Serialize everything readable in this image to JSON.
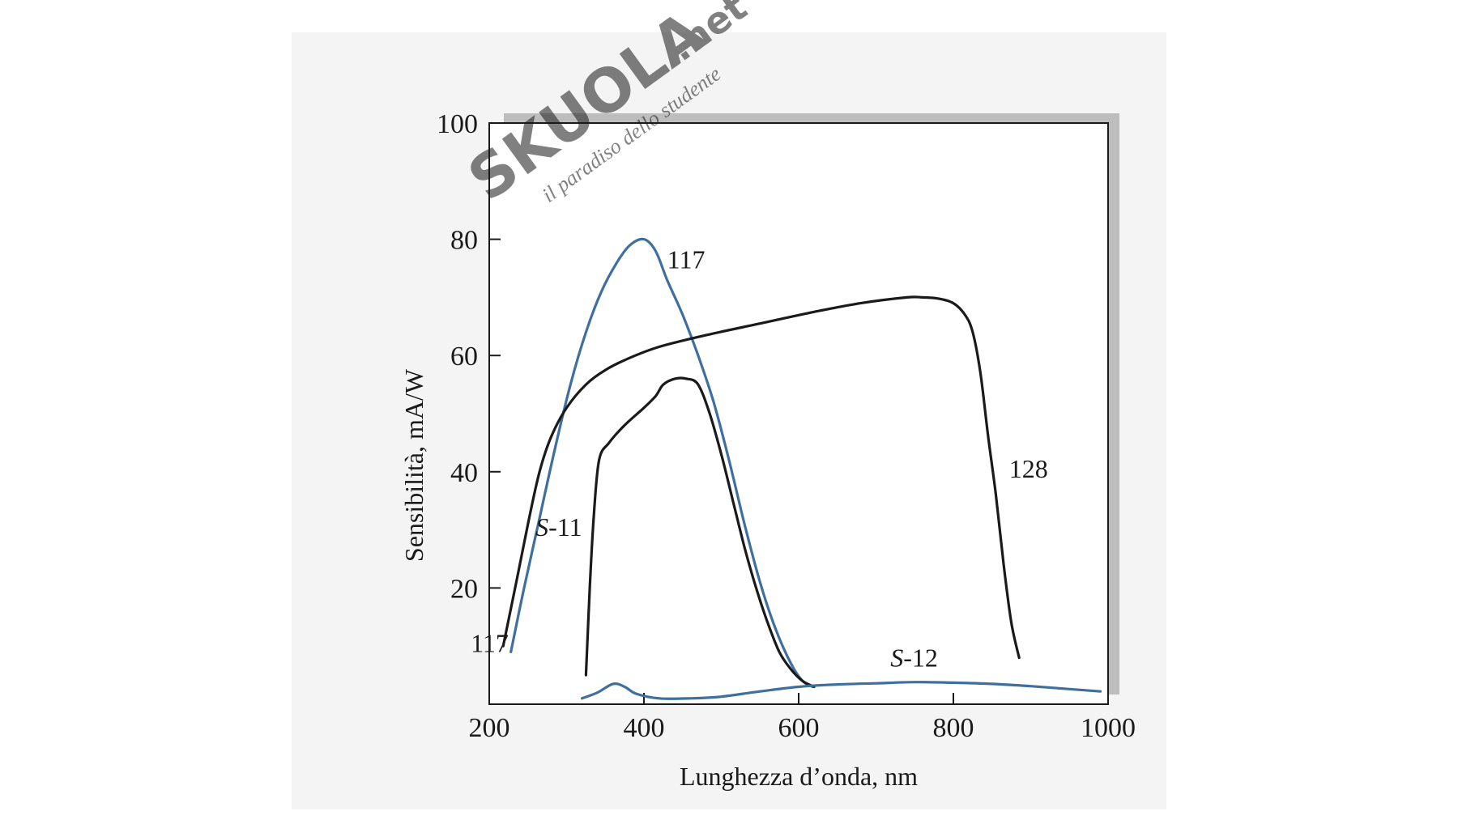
{
  "chart_data": {
    "type": "line",
    "title": "",
    "xlabel": "Lunghezza d’onda, nm",
    "ylabel": "Sensibilità, mA/W",
    "xlim": [
      200,
      1000
    ],
    "ylim": [
      0,
      100
    ],
    "xticks": [
      "200",
      "400",
      "600",
      "800",
      "1000"
    ],
    "yticks": [
      "20",
      "40",
      "60",
      "80",
      "100"
    ],
    "grid": false,
    "legend": "none",
    "series": [
      {
        "name": "117",
        "label_text": "117",
        "label_text_2": "117",
        "color": "#3f6f9e",
        "points": [
          [
            228,
            9
          ],
          [
            245,
            20
          ],
          [
            265,
            32
          ],
          [
            285,
            44
          ],
          [
            305,
            55
          ],
          [
            325,
            64
          ],
          [
            345,
            71
          ],
          [
            365,
            76
          ],
          [
            382,
            79
          ],
          [
            400,
            80
          ],
          [
            415,
            78
          ],
          [
            430,
            73
          ],
          [
            450,
            67
          ],
          [
            470,
            60
          ],
          [
            490,
            52
          ],
          [
            510,
            42
          ],
          [
            530,
            31
          ],
          [
            550,
            21
          ],
          [
            570,
            13
          ],
          [
            590,
            7
          ],
          [
            605,
            4
          ],
          [
            618,
            3
          ]
        ]
      },
      {
        "name": "128",
        "label_text": "128",
        "color": "#1a1a1a",
        "points": [
          [
            218,
            10
          ],
          [
            235,
            21
          ],
          [
            250,
            31
          ],
          [
            265,
            40
          ],
          [
            280,
            46
          ],
          [
            300,
            51
          ],
          [
            325,
            55
          ],
          [
            350,
            57.5
          ],
          [
            380,
            59.5
          ],
          [
            420,
            61.5
          ],
          [
            480,
            63.5
          ],
          [
            550,
            65.5
          ],
          [
            620,
            67.5
          ],
          [
            680,
            69
          ],
          [
            740,
            70
          ],
          [
            760,
            70
          ],
          [
            780,
            69.8
          ],
          [
            800,
            69
          ],
          [
            815,
            67
          ],
          [
            825,
            64
          ],
          [
            835,
            57
          ],
          [
            845,
            46
          ],
          [
            855,
            36
          ],
          [
            865,
            24
          ],
          [
            875,
            14
          ],
          [
            885,
            8
          ]
        ]
      },
      {
        "name": "S-11",
        "label_text": "S-11",
        "color": "#1a1a1a",
        "points": [
          [
            325,
            5
          ],
          [
            330,
            20
          ],
          [
            335,
            32
          ],
          [
            342,
            42
          ],
          [
            355,
            45
          ],
          [
            375,
            48
          ],
          [
            400,
            51
          ],
          [
            415,
            53
          ],
          [
            425,
            55
          ],
          [
            440,
            56
          ],
          [
            455,
            56
          ],
          [
            470,
            55
          ],
          [
            485,
            50
          ],
          [
            500,
            43
          ],
          [
            515,
            35
          ],
          [
            530,
            27
          ],
          [
            545,
            20
          ],
          [
            560,
            14
          ],
          [
            575,
            9
          ],
          [
            590,
            6
          ],
          [
            605,
            4
          ],
          [
            620,
            3
          ]
        ]
      },
      {
        "name": "S-12",
        "label_text": "S-12",
        "color": "#3f6f9e",
        "points": [
          [
            320,
            1
          ],
          [
            340,
            2
          ],
          [
            360,
            3.5
          ],
          [
            375,
            3
          ],
          [
            390,
            1.8
          ],
          [
            420,
            1
          ],
          [
            460,
            1
          ],
          [
            500,
            1.3
          ],
          [
            550,
            2.2
          ],
          [
            600,
            3
          ],
          [
            650,
            3.4
          ],
          [
            700,
            3.6
          ],
          [
            750,
            3.8
          ],
          [
            800,
            3.7
          ],
          [
            850,
            3.5
          ],
          [
            900,
            3.1
          ],
          [
            950,
            2.6
          ],
          [
            990,
            2.2
          ]
        ]
      }
    ]
  },
  "watermark": {
    "brand": "SKUOLA",
    "suffix": ".net",
    "tagline": "il paradiso dello studente"
  }
}
